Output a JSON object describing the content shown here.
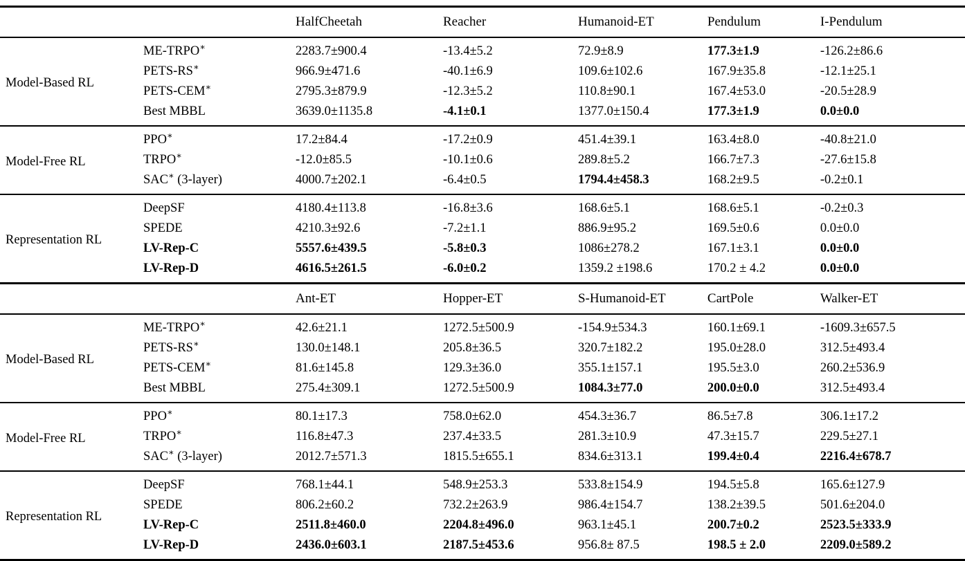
{
  "page": {
    "background_color": "#ffffff",
    "text_color": "#000000",
    "rule_color": "#000000"
  },
  "table": {
    "col_widths": [
      "14.85%",
      "15.78%",
      "15.28%",
      "13.99%",
      "13.41%",
      "11.69%",
      "15.0%"
    ],
    "sections": [
      {
        "columns": [
          "HalfCheetah",
          "Reacher",
          "Humanoid-ET",
          "Pendulum",
          "I-Pendulum"
        ],
        "groups": [
          {
            "label": "Model-Based RL",
            "rows": [
              {
                "method": {
                  "name": "ME-TRPO",
                  "sup": "∗",
                  "suffix": "",
                  "bold": false
                },
                "cells": [
                  {
                    "value": "2283.7±900.4",
                    "bold": false
                  },
                  {
                    "value": "-13.4±5.2",
                    "bold": false
                  },
                  {
                    "value": "72.9±8.9",
                    "bold": false
                  },
                  {
                    "value": "177.3±1.9",
                    "bold": true
                  },
                  {
                    "value": "-126.2±86.6",
                    "bold": false
                  }
                ]
              },
              {
                "method": {
                  "name": "PETS-RS",
                  "sup": "∗",
                  "suffix": "",
                  "bold": false
                },
                "cells": [
                  {
                    "value": "966.9±471.6",
                    "bold": false
                  },
                  {
                    "value": "-40.1±6.9",
                    "bold": false
                  },
                  {
                    "value": "109.6±102.6",
                    "bold": false
                  },
                  {
                    "value": "167.9±35.8",
                    "bold": false
                  },
                  {
                    "value": "-12.1±25.1",
                    "bold": false
                  }
                ]
              },
              {
                "method": {
                  "name": "PETS-CEM",
                  "sup": "∗",
                  "suffix": "",
                  "bold": false
                },
                "cells": [
                  {
                    "value": "2795.3±879.9",
                    "bold": false
                  },
                  {
                    "value": "-12.3±5.2",
                    "bold": false
                  },
                  {
                    "value": "110.8±90.1",
                    "bold": false
                  },
                  {
                    "value": "167.4±53.0",
                    "bold": false
                  },
                  {
                    "value": "-20.5±28.9",
                    "bold": false
                  }
                ]
              },
              {
                "method": {
                  "name": "Best MBBL",
                  "sup": "",
                  "suffix": "",
                  "bold": false
                },
                "cells": [
                  {
                    "value": "3639.0±1135.8",
                    "bold": false
                  },
                  {
                    "value": "-4.1±0.1",
                    "bold": true
                  },
                  {
                    "value": "1377.0±150.4",
                    "bold": false
                  },
                  {
                    "value": "177.3±1.9",
                    "bold": true
                  },
                  {
                    "value": "0.0±0.0",
                    "bold": true
                  }
                ]
              }
            ]
          },
          {
            "label": "Model-Free RL",
            "rows": [
              {
                "method": {
                  "name": "PPO",
                  "sup": "∗",
                  "suffix": "",
                  "bold": false
                },
                "cells": [
                  {
                    "value": "17.2±84.4",
                    "bold": false
                  },
                  {
                    "value": "-17.2±0.9",
                    "bold": false
                  },
                  {
                    "value": "451.4±39.1",
                    "bold": false
                  },
                  {
                    "value": "163.4±8.0",
                    "bold": false
                  },
                  {
                    "value": "-40.8±21.0",
                    "bold": false
                  }
                ]
              },
              {
                "method": {
                  "name": "TRPO",
                  "sup": "∗",
                  "suffix": "",
                  "bold": false
                },
                "cells": [
                  {
                    "value": "-12.0±85.5",
                    "bold": false
                  },
                  {
                    "value": "-10.1±0.6",
                    "bold": false
                  },
                  {
                    "value": "289.8±5.2",
                    "bold": false
                  },
                  {
                    "value": "166.7±7.3",
                    "bold": false
                  },
                  {
                    "value": "-27.6±15.8",
                    "bold": false
                  }
                ]
              },
              {
                "method": {
                  "name": "SAC",
                  "sup": "∗",
                  "suffix": " (3-layer)",
                  "bold": false
                },
                "cells": [
                  {
                    "value": "4000.7±202.1",
                    "bold": false
                  },
                  {
                    "value": "-6.4±0.5",
                    "bold": false
                  },
                  {
                    "value": "1794.4±458.3",
                    "bold": true
                  },
                  {
                    "value": "168.2±9.5",
                    "bold": false
                  },
                  {
                    "value": "-0.2±0.1",
                    "bold": false
                  }
                ]
              }
            ]
          },
          {
            "label": "Representation RL",
            "rows": [
              {
                "method": {
                  "name": "DeepSF",
                  "sup": "",
                  "suffix": "",
                  "bold": false
                },
                "cells": [
                  {
                    "value": "4180.4±113.8",
                    "bold": false
                  },
                  {
                    "value": "-16.8±3.6",
                    "bold": false
                  },
                  {
                    "value": "168.6±5.1",
                    "bold": false
                  },
                  {
                    "value": "168.6±5.1",
                    "bold": false
                  },
                  {
                    "value": "-0.2±0.3",
                    "bold": false
                  }
                ]
              },
              {
                "method": {
                  "name": "SPEDE",
                  "sup": "",
                  "suffix": "",
                  "bold": false
                },
                "cells": [
                  {
                    "value": "4210.3±92.6",
                    "bold": false
                  },
                  {
                    "value": "-7.2±1.1",
                    "bold": false
                  },
                  {
                    "value": "886.9±95.2",
                    "bold": false
                  },
                  {
                    "value": "169.5±0.6",
                    "bold": false
                  },
                  {
                    "value": "0.0±0.0",
                    "bold": false
                  }
                ]
              },
              {
                "method": {
                  "name": "LV-Rep-C",
                  "sup": "",
                  "suffix": "",
                  "bold": true
                },
                "cells": [
                  {
                    "value": "5557.6±439.5",
                    "bold": true
                  },
                  {
                    "value": "-5.8±0.3",
                    "bold": true
                  },
                  {
                    "value": "1086±278.2",
                    "bold": false
                  },
                  {
                    "value": "167.1±3.1",
                    "bold": false
                  },
                  {
                    "value": "0.0±0.0",
                    "bold": true
                  }
                ]
              },
              {
                "method": {
                  "name": "LV-Rep-D",
                  "sup": "",
                  "suffix": "",
                  "bold": true
                },
                "cells": [
                  {
                    "value": "4616.5±261.5",
                    "bold": true
                  },
                  {
                    "value": "-6.0±0.2",
                    "bold": true
                  },
                  {
                    "value": "1359.2 ±198.6",
                    "bold": false
                  },
                  {
                    "value": "170.2 ± 4.2",
                    "bold": false
                  },
                  {
                    "value": "0.0±0.0",
                    "bold": true
                  }
                ]
              }
            ]
          }
        ]
      },
      {
        "columns": [
          "Ant-ET",
          "Hopper-ET",
          "S-Humanoid-ET",
          "CartPole",
          "Walker-ET"
        ],
        "groups": [
          {
            "label": "Model-Based RL",
            "rows": [
              {
                "method": {
                  "name": "ME-TRPO",
                  "sup": "∗",
                  "suffix": "",
                  "bold": false
                },
                "cells": [
                  {
                    "value": "42.6±21.1",
                    "bold": false
                  },
                  {
                    "value": "1272.5±500.9",
                    "bold": false
                  },
                  {
                    "value": "-154.9±534.3",
                    "bold": false
                  },
                  {
                    "value": "160.1±69.1",
                    "bold": false
                  },
                  {
                    "value": "-1609.3±657.5",
                    "bold": false
                  }
                ]
              },
              {
                "method": {
                  "name": "PETS-RS",
                  "sup": "∗",
                  "suffix": "",
                  "bold": false
                },
                "cells": [
                  {
                    "value": "130.0±148.1",
                    "bold": false
                  },
                  {
                    "value": "205.8±36.5",
                    "bold": false
                  },
                  {
                    "value": "320.7±182.2",
                    "bold": false
                  },
                  {
                    "value": "195.0±28.0",
                    "bold": false
                  },
                  {
                    "value": "312.5±493.4",
                    "bold": false
                  }
                ]
              },
              {
                "method": {
                  "name": "PETS-CEM",
                  "sup": "∗",
                  "suffix": "",
                  "bold": false
                },
                "cells": [
                  {
                    "value": "81.6±145.8",
                    "bold": false
                  },
                  {
                    "value": "129.3±36.0",
                    "bold": false
                  },
                  {
                    "value": "355.1±157.1",
                    "bold": false
                  },
                  {
                    "value": "195.5±3.0",
                    "bold": false
                  },
                  {
                    "value": "260.2±536.9",
                    "bold": false
                  }
                ]
              },
              {
                "method": {
                  "name": "Best MBBL",
                  "sup": "",
                  "suffix": "",
                  "bold": false
                },
                "cells": [
                  {
                    "value": "275.4±309.1",
                    "bold": false
                  },
                  {
                    "value": "1272.5±500.9",
                    "bold": false
                  },
                  {
                    "value": "1084.3±77.0",
                    "bold": true
                  },
                  {
                    "value": "200.0±0.0",
                    "bold": true
                  },
                  {
                    "value": "312.5±493.4",
                    "bold": false
                  }
                ]
              }
            ]
          },
          {
            "label": "Model-Free RL",
            "rows": [
              {
                "method": {
                  "name": "PPO",
                  "sup": "∗",
                  "suffix": "",
                  "bold": false
                },
                "cells": [
                  {
                    "value": "80.1±17.3",
                    "bold": false
                  },
                  {
                    "value": "758.0±62.0",
                    "bold": false
                  },
                  {
                    "value": "454.3±36.7",
                    "bold": false
                  },
                  {
                    "value": "86.5±7.8",
                    "bold": false
                  },
                  {
                    "value": "306.1±17.2",
                    "bold": false
                  }
                ]
              },
              {
                "method": {
                  "name": "TRPO",
                  "sup": "∗",
                  "suffix": "",
                  "bold": false
                },
                "cells": [
                  {
                    "value": "116.8±47.3",
                    "bold": false
                  },
                  {
                    "value": "237.4±33.5",
                    "bold": false
                  },
                  {
                    "value": "281.3±10.9",
                    "bold": false
                  },
                  {
                    "value": "47.3±15.7",
                    "bold": false
                  },
                  {
                    "value": "229.5±27.1",
                    "bold": false
                  }
                ]
              },
              {
                "method": {
                  "name": "SAC",
                  "sup": "∗",
                  "suffix": " (3-layer)",
                  "bold": false
                },
                "cells": [
                  {
                    "value": "2012.7±571.3",
                    "bold": false
                  },
                  {
                    "value": "1815.5±655.1",
                    "bold": false
                  },
                  {
                    "value": "834.6±313.1",
                    "bold": false
                  },
                  {
                    "value": "199.4±0.4",
                    "bold": true
                  },
                  {
                    "value": "2216.4±678.7",
                    "bold": true
                  }
                ]
              }
            ]
          },
          {
            "label": "Representation RL",
            "rows": [
              {
                "method": {
                  "name": "DeepSF",
                  "sup": "",
                  "suffix": "",
                  "bold": false
                },
                "cells": [
                  {
                    "value": "768.1±44.1",
                    "bold": false
                  },
                  {
                    "value": "548.9±253.3",
                    "bold": false
                  },
                  {
                    "value": "533.8±154.9",
                    "bold": false
                  },
                  {
                    "value": "194.5±5.8",
                    "bold": false
                  },
                  {
                    "value": "165.6±127.9",
                    "bold": false
                  }
                ]
              },
              {
                "method": {
                  "name": "SPEDE",
                  "sup": "",
                  "suffix": "",
                  "bold": false
                },
                "cells": [
                  {
                    "value": "806.2±60.2",
                    "bold": false
                  },
                  {
                    "value": "732.2±263.9",
                    "bold": false
                  },
                  {
                    "value": "986.4±154.7",
                    "bold": false
                  },
                  {
                    "value": "138.2±39.5",
                    "bold": false
                  },
                  {
                    "value": "501.6±204.0",
                    "bold": false
                  }
                ]
              },
              {
                "method": {
                  "name": "LV-Rep-C",
                  "sup": "",
                  "suffix": "",
                  "bold": true
                },
                "cells": [
                  {
                    "value": "2511.8±460.0",
                    "bold": true
                  },
                  {
                    "value": "2204.8±496.0",
                    "bold": true
                  },
                  {
                    "value": "963.1±45.1",
                    "bold": false
                  },
                  {
                    "value": "200.7±0.2",
                    "bold": true
                  },
                  {
                    "value": "2523.5±333.9",
                    "bold": true
                  }
                ]
              },
              {
                "method": {
                  "name": "LV-Rep-D",
                  "sup": "",
                  "suffix": "",
                  "bold": true
                },
                "cells": [
                  {
                    "value": "2436.0±603.1",
                    "bold": true
                  },
                  {
                    "value": "2187.5±453.6",
                    "bold": true
                  },
                  {
                    "value": "956.8± 87.5",
                    "bold": false
                  },
                  {
                    "value": "198.5 ± 2.0",
                    "bold": true
                  },
                  {
                    "value": "2209.0±589.2",
                    "bold": true
                  }
                ]
              }
            ]
          }
        ]
      }
    ]
  }
}
